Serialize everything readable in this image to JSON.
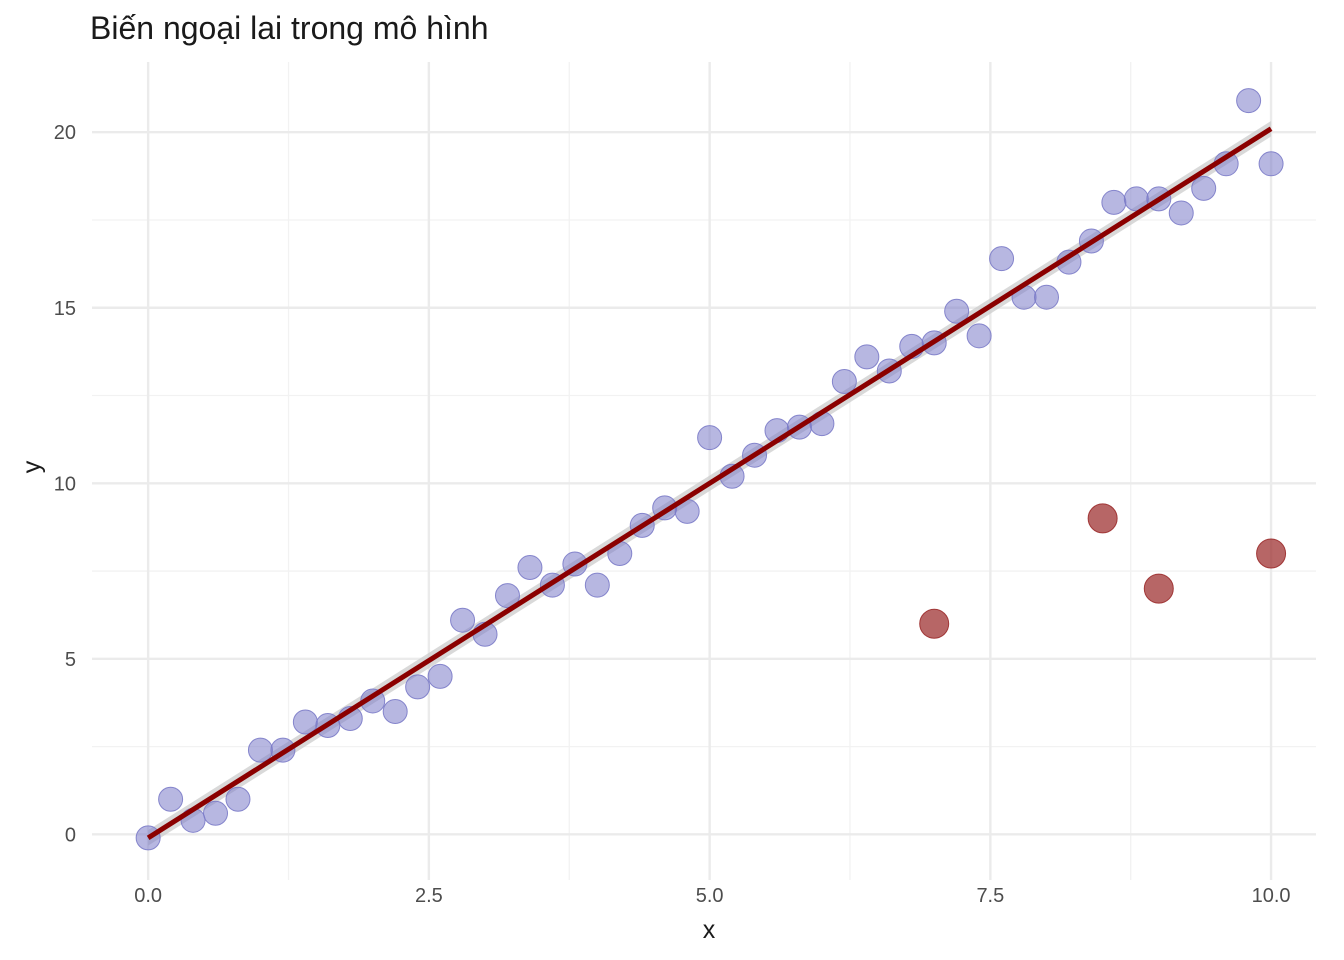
{
  "chart_data": {
    "type": "scatter",
    "title": "Biến ngoại lai trong mô hình",
    "xlabel": "x",
    "ylabel": "y",
    "xlim": [
      -0.5,
      10.4
    ],
    "ylim": [
      -1.3,
      22.0
    ],
    "x_ticks": [
      0.0,
      2.5,
      5.0,
      7.5,
      10.0
    ],
    "x_tick_labels": [
      "0.0",
      "2.5",
      "5.0",
      "7.5",
      "10.0"
    ],
    "y_ticks": [
      0,
      5,
      10,
      15,
      20
    ],
    "y_tick_labels": [
      "0",
      "5",
      "10",
      "15",
      "20"
    ],
    "grid": true,
    "legend": "none",
    "series": [
      {
        "role": "points",
        "color": "#7b7bc8",
        "points": [
          [
            0.0,
            -0.1
          ],
          [
            0.2,
            1.0
          ],
          [
            0.4,
            0.4
          ],
          [
            0.6,
            0.6
          ],
          [
            0.8,
            1.0
          ],
          [
            1.0,
            2.4
          ],
          [
            1.2,
            2.4
          ],
          [
            1.4,
            3.2
          ],
          [
            1.6,
            3.1
          ],
          [
            1.8,
            3.3
          ],
          [
            2.0,
            3.8
          ],
          [
            2.2,
            3.5
          ],
          [
            2.4,
            4.2
          ],
          [
            2.6,
            4.5
          ],
          [
            2.8,
            6.1
          ],
          [
            3.0,
            5.7
          ],
          [
            3.2,
            6.8
          ],
          [
            3.4,
            7.6
          ],
          [
            3.6,
            7.1
          ],
          [
            3.8,
            7.7
          ],
          [
            4.0,
            7.1
          ],
          [
            4.2,
            8.0
          ],
          [
            4.4,
            8.8
          ],
          [
            4.6,
            9.3
          ],
          [
            4.8,
            9.2
          ],
          [
            5.0,
            11.3
          ],
          [
            5.2,
            10.2
          ],
          [
            5.4,
            10.8
          ],
          [
            5.6,
            11.5
          ],
          [
            5.8,
            11.6
          ],
          [
            6.0,
            11.7
          ],
          [
            6.2,
            12.9
          ],
          [
            6.4,
            13.6
          ],
          [
            6.6,
            13.2
          ],
          [
            6.8,
            13.9
          ],
          [
            7.0,
            14.0
          ],
          [
            7.2,
            14.9
          ],
          [
            7.4,
            14.2
          ],
          [
            7.6,
            16.4
          ],
          [
            7.8,
            15.3
          ],
          [
            8.0,
            15.3
          ],
          [
            8.2,
            16.3
          ],
          [
            8.4,
            16.9
          ],
          [
            8.6,
            18.0
          ],
          [
            8.8,
            18.1
          ],
          [
            9.0,
            18.1
          ],
          [
            9.2,
            17.7
          ],
          [
            9.4,
            18.4
          ],
          [
            9.6,
            19.1
          ],
          [
            9.8,
            20.9
          ],
          [
            10.0,
            19.1
          ]
        ]
      },
      {
        "role": "outliers",
        "color": "#9b2b2b",
        "points": [
          [
            7.0,
            6.0
          ],
          [
            8.5,
            9.0
          ],
          [
            9.0,
            7.0
          ],
          [
            10.0,
            8.0
          ]
        ]
      }
    ],
    "fit_line": {
      "color": "#8b0000",
      "band_color": "#cccccc",
      "intercept": -0.1,
      "slope": 2.02,
      "x_range": [
        0.0,
        10.0
      ],
      "band_halfwidth": 0.22
    }
  }
}
